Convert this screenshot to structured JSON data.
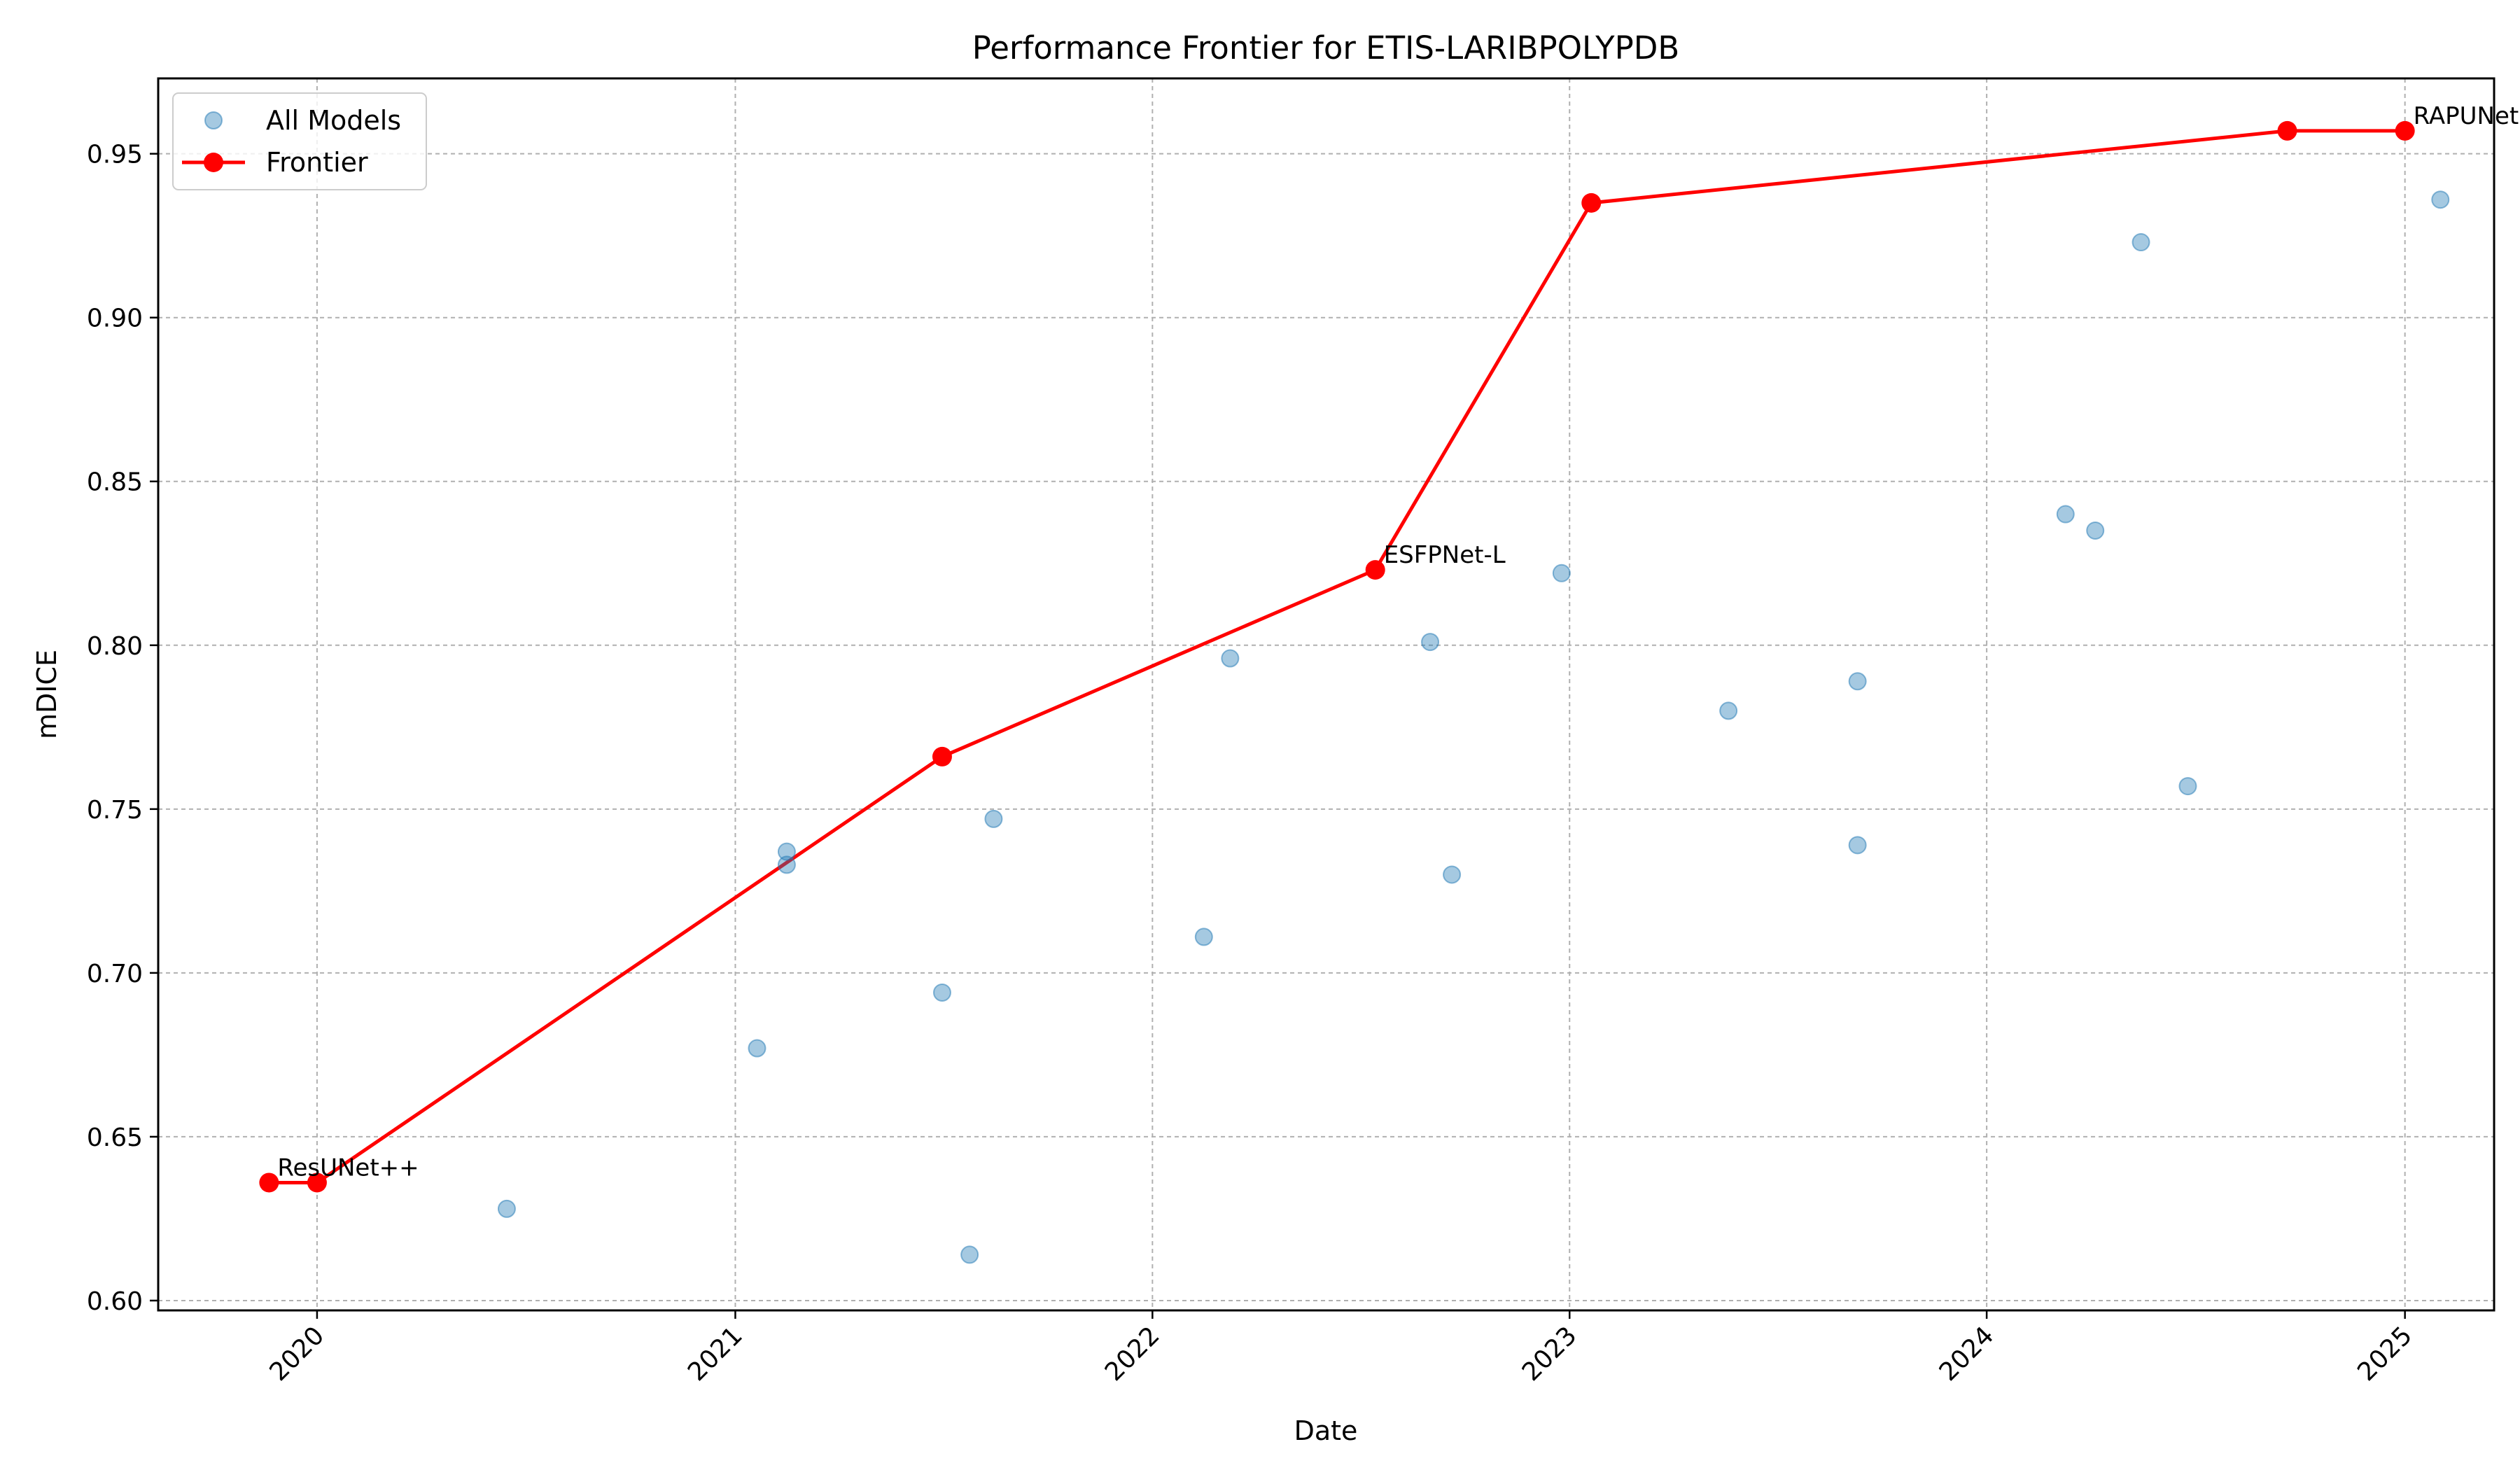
{
  "chart_data": {
    "type": "scatter",
    "title": "Performance Frontier for ETIS-LARIBPOLYPDB",
    "xlabel": "Date",
    "ylabel": "mDICE",
    "xlim": [
      "2019-08-15",
      "2025-03-20"
    ],
    "ylim": [
      0.597,
      0.973
    ],
    "x_ticks": [
      {
        "date": "2020-01-01",
        "label": "2020"
      },
      {
        "date": "2021-01-01",
        "label": "2021"
      },
      {
        "date": "2022-01-01",
        "label": "2022"
      },
      {
        "date": "2023-01-01",
        "label": "2023"
      },
      {
        "date": "2024-01-01",
        "label": "2024"
      },
      {
        "date": "2025-01-01",
        "label": "2025"
      }
    ],
    "y_ticks": [
      0.6,
      0.65,
      0.7,
      0.75,
      0.8,
      0.85,
      0.9,
      0.95
    ],
    "y_tick_labels": [
      "0.60",
      "0.65",
      "0.70",
      "0.75",
      "0.80",
      "0.85",
      "0.90",
      "0.95"
    ],
    "grid": true,
    "legend_position": "top-left",
    "series": [
      {
        "name": "All Models",
        "kind": "scatter",
        "color": "#1f77b4",
        "points": [
          {
            "x": "2019-11-20",
            "y": 0.636
          },
          {
            "x": "2020-01-01",
            "y": 0.636
          },
          {
            "x": "2020-06-15",
            "y": 0.628
          },
          {
            "x": "2021-01-20",
            "y": 0.677
          },
          {
            "x": "2021-02-15",
            "y": 0.737
          },
          {
            "x": "2021-02-15",
            "y": 0.733
          },
          {
            "x": "2021-07-01",
            "y": 0.766
          },
          {
            "x": "2021-07-01",
            "y": 0.694
          },
          {
            "x": "2021-07-25",
            "y": 0.614
          },
          {
            "x": "2021-08-15",
            "y": 0.747
          },
          {
            "x": "2022-02-15",
            "y": 0.711
          },
          {
            "x": "2022-03-10",
            "y": 0.796
          },
          {
            "x": "2022-07-15",
            "y": 0.823
          },
          {
            "x": "2022-09-01",
            "y": 0.801
          },
          {
            "x": "2022-09-20",
            "y": 0.73
          },
          {
            "x": "2022-12-25",
            "y": 0.822
          },
          {
            "x": "2023-01-20",
            "y": 0.935
          },
          {
            "x": "2023-05-20",
            "y": 0.78
          },
          {
            "x": "2023-09-10",
            "y": 0.739
          },
          {
            "x": "2023-09-10",
            "y": 0.789
          },
          {
            "x": "2024-03-10",
            "y": 0.84
          },
          {
            "x": "2024-04-05",
            "y": 0.835
          },
          {
            "x": "2024-05-15",
            "y": 0.923
          },
          {
            "x": "2024-06-25",
            "y": 0.757
          },
          {
            "x": "2024-09-20",
            "y": 0.957
          },
          {
            "x": "2025-01-01",
            "y": 0.957
          },
          {
            "x": "2025-02-01",
            "y": 0.936
          }
        ]
      },
      {
        "name": "Frontier",
        "kind": "line",
        "color": "#ff0000",
        "points": [
          {
            "x": "2019-11-20",
            "y": 0.636
          },
          {
            "x": "2020-01-01",
            "y": 0.636
          },
          {
            "x": "2021-07-01",
            "y": 0.766
          },
          {
            "x": "2022-07-15",
            "y": 0.823
          },
          {
            "x": "2023-01-20",
            "y": 0.935
          },
          {
            "x": "2024-09-20",
            "y": 0.957
          },
          {
            "x": "2025-01-01",
            "y": 0.957
          }
        ]
      }
    ],
    "annotations": [
      {
        "text": "ResUNet++",
        "x": "2019-11-20",
        "y": 0.636
      },
      {
        "text": "ESFPNet-L",
        "x": "2022-07-15",
        "y": 0.823
      },
      {
        "text": "RAPUNet",
        "x": "2025-01-01",
        "y": 0.957
      }
    ]
  }
}
